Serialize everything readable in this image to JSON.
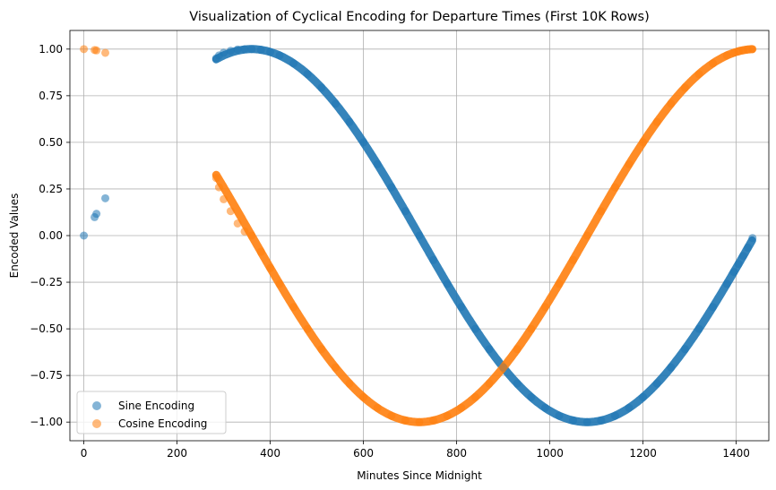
{
  "chart_data": {
    "type": "scatter",
    "title": "Visualization of Cyclical Encoding for Departure Times (First 10K Rows)",
    "xlabel": "Minutes Since Midnight",
    "ylabel": "Encoded Values",
    "xlim": [
      -30,
      1470
    ],
    "ylim": [
      -1.1,
      1.1
    ],
    "xticks": [
      0,
      200,
      400,
      600,
      800,
      1000,
      1200,
      1400
    ],
    "xtick_labels": [
      "0",
      "200",
      "400",
      "600",
      "800",
      "1000",
      "1200",
      "1400"
    ],
    "yticks": [
      -1.0,
      -0.75,
      -0.5,
      -0.25,
      0.0,
      0.25,
      0.5,
      0.75,
      1.0
    ],
    "ytick_labels": [
      "−1.00",
      "−0.75",
      "−0.50",
      "−0.25",
      "0.00",
      "0.25",
      "0.50",
      "0.75",
      "1.00"
    ],
    "grid": true,
    "legend_position": "lower-left",
    "series": [
      {
        "name": "Sine Encoding",
        "color": "#1f77b4",
        "alpha": 0.55,
        "x": [
          0,
          23,
          27,
          46,
          284,
          290,
          300,
          315,
          330,
          345,
          360,
          380,
          400,
          420,
          450,
          480,
          510,
          540,
          570,
          600,
          630,
          660,
          690,
          720,
          750,
          780,
          810,
          840,
          870,
          900,
          930,
          960,
          990,
          1020,
          1050,
          1080,
          1110,
          1140,
          1170,
          1200,
          1230,
          1260,
          1290,
          1320,
          1350,
          1380,
          1395,
          1405,
          1415,
          1425,
          1435
        ],
        "y": [
          0.0,
          0.099,
          0.117,
          0.2,
          0.951,
          0.966,
          0.981,
          0.991,
          0.998,
          1.0,
          1.0,
          0.996,
          0.985,
          0.966,
          0.924,
          0.866,
          0.793,
          0.707,
          0.609,
          0.5,
          0.383,
          0.259,
          0.131,
          0.0,
          -0.131,
          -0.259,
          -0.383,
          -0.5,
          -0.609,
          -0.707,
          -0.793,
          -0.866,
          -0.924,
          -0.966,
          -0.991,
          -1.0,
          -0.991,
          -0.966,
          -0.924,
          -0.866,
          -0.793,
          -0.707,
          -0.609,
          -0.5,
          -0.383,
          -0.259,
          -0.195,
          -0.152,
          -0.109,
          -0.065,
          -0.013
        ]
      },
      {
        "name": "Cosine Encoding",
        "color": "#ff7f0e",
        "alpha": 0.55,
        "x": [
          0,
          23,
          27,
          46,
          284,
          290,
          300,
          315,
          330,
          345,
          360,
          380,
          400,
          420,
          450,
          480,
          510,
          540,
          570,
          600,
          630,
          660,
          690,
          720,
          750,
          780,
          810,
          840,
          870,
          900,
          930,
          960,
          990,
          1020,
          1050,
          1080,
          1110,
          1140,
          1170,
          1200,
          1230,
          1260,
          1290,
          1320,
          1350,
          1380,
          1395,
          1405,
          1415,
          1425,
          1435
        ],
        "y": [
          1.0,
          0.995,
          0.993,
          0.98,
          0.309,
          0.259,
          0.195,
          0.131,
          0.065,
          0.022,
          0.0,
          -0.087,
          -0.174,
          -0.259,
          -0.383,
          -0.5,
          -0.609,
          -0.707,
          -0.793,
          -0.866,
          -0.924,
          -0.966,
          -0.991,
          -1.0,
          -0.991,
          -0.966,
          -0.924,
          -0.866,
          -0.793,
          -0.707,
          -0.609,
          -0.5,
          -0.383,
          -0.259,
          -0.131,
          0.0,
          0.131,
          0.259,
          0.383,
          0.5,
          0.609,
          0.707,
          0.793,
          0.866,
          0.924,
          0.966,
          0.981,
          0.988,
          0.994,
          0.998,
          1.0
        ]
      }
    ]
  }
}
